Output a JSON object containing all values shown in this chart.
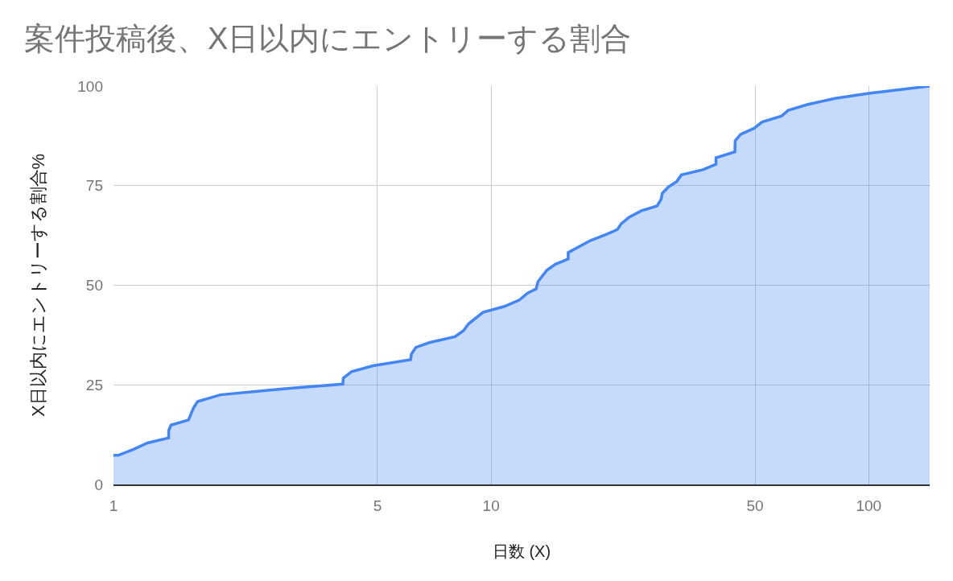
{
  "chart_data": {
    "type": "area",
    "title": "案件投稿後、X日以内にエントリーする割合",
    "xlabel": "日数 (X)",
    "ylabel": "X日以内にエントリーする割合%",
    "log": "x",
    "grid": true,
    "xlim": [
      1,
      145
    ],
    "xticks": [
      1,
      5,
      10,
      50,
      100
    ],
    "ylim": [
      0,
      100
    ],
    "yticks": [
      0,
      25,
      50,
      75,
      100
    ],
    "x": [
      1,
      1.03,
      1.13,
      1.23,
      1.4,
      1.4,
      1.42,
      1.58,
      1.63,
      1.67,
      1.92,
      2.53,
      2.98,
      4.05,
      4.06,
      4.27,
      4.87,
      6.12,
      6.15,
      6.32,
      6.86,
      8.02,
      8.45,
      8.71,
      9.52,
      10.85,
      11.88,
      12.37,
      12.58,
      13.16,
      13.31,
      14.05,
      14.81,
      16.0,
      16.0,
      18.3,
      20.1,
      21.6,
      22.1,
      23.2,
      25.0,
      27.5,
      28.2,
      28.4,
      29.5,
      31.0,
      31.9,
      36.4,
      39.4,
      39.4,
      44.2,
      44.3,
      45.8,
      49.7,
      52.2,
      58.8,
      61.2,
      69.0,
      81.5,
      100,
      145
    ],
    "series": [
      {
        "color": "#4285f4",
        "values": [
          7.3,
          7.3,
          8.8,
          10.4,
          11.7,
          13.5,
          14.9,
          16.2,
          19.3,
          20.8,
          22.5,
          23.6,
          24.2,
          25.2,
          26.7,
          28.3,
          29.8,
          31.3,
          32.7,
          34.4,
          35.6,
          37.1,
          38.6,
          40.3,
          43.2,
          44.7,
          46.3,
          47.7,
          48.2,
          49.1,
          50.9,
          53.8,
          55.3,
          56.6,
          58.2,
          61.2,
          62.7,
          64.0,
          65.4,
          67.1,
          68.7,
          69.9,
          71.6,
          73.1,
          74.7,
          76.0,
          77.7,
          79.0,
          80.4,
          82.0,
          83.5,
          86.3,
          87.9,
          89.4,
          91.0,
          92.5,
          93.9,
          95.4,
          96.9,
          98.2,
          100
        ]
      }
    ]
  }
}
